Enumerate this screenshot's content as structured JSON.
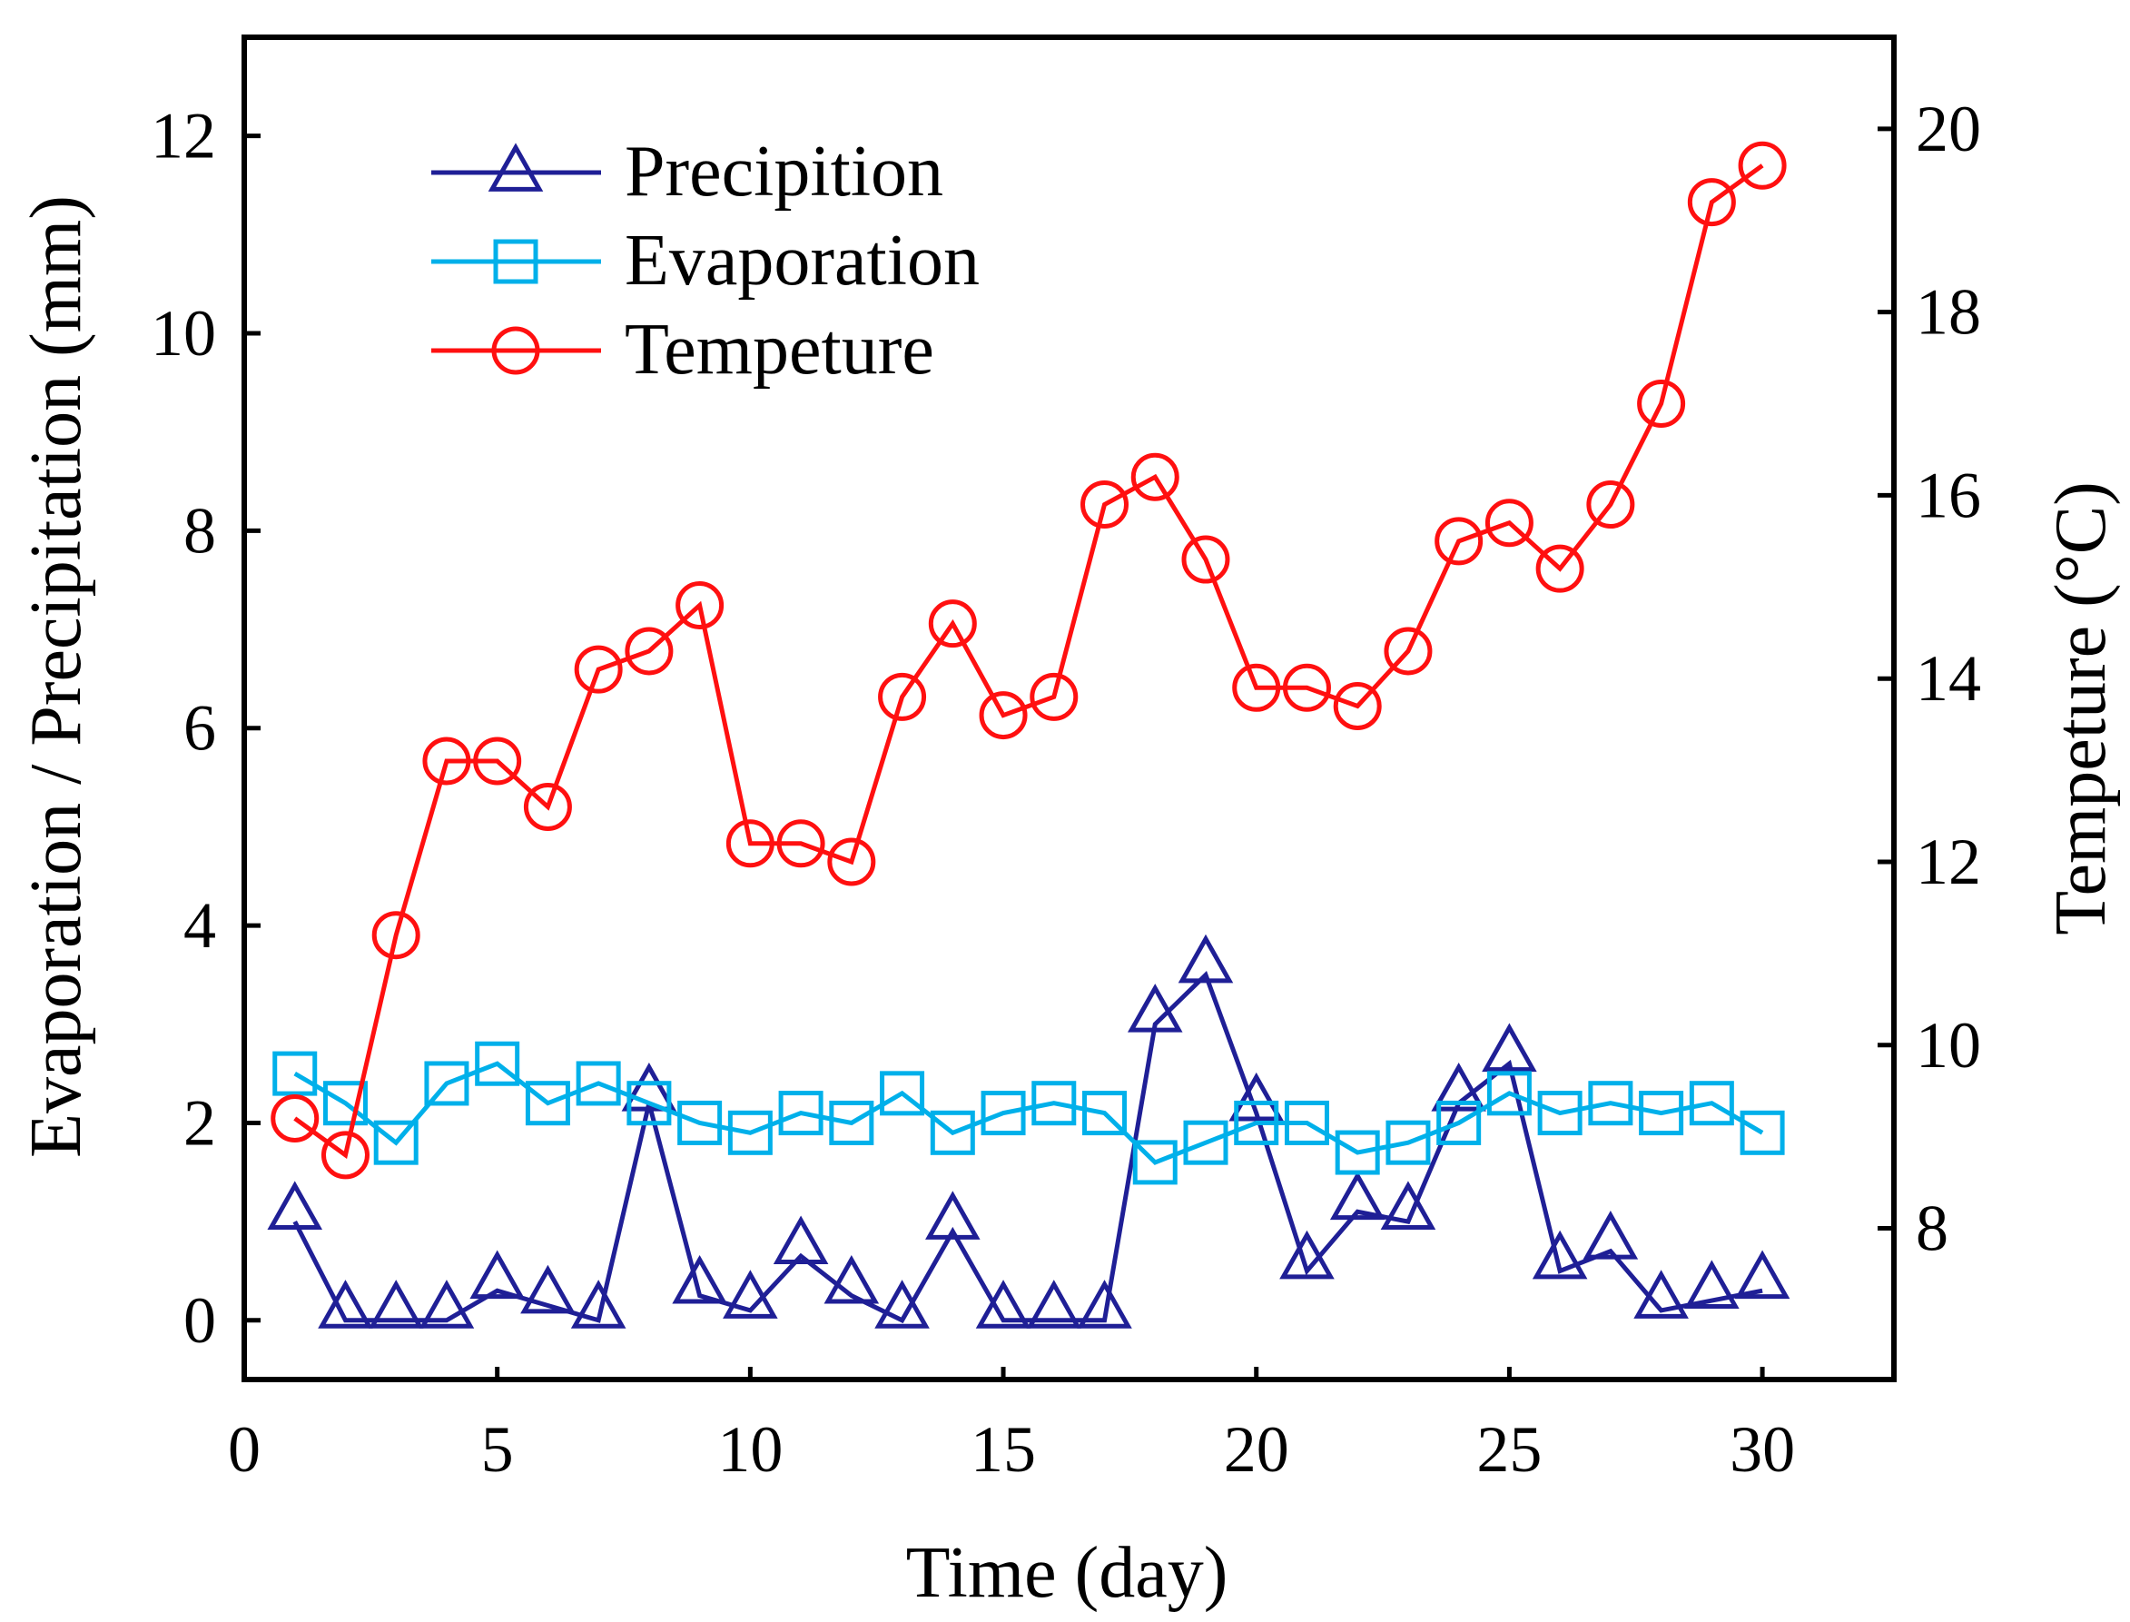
{
  "chart_data": {
    "type": "line",
    "xlabel": "Time (day)",
    "ylabel_left": "Evaporation / Precipitation (mm)",
    "ylabel_right": "Tempeture (°C)",
    "xlim": [
      0,
      32.6
    ],
    "ylim_left": [
      -0.6,
      13
    ],
    "ylim_right": [
      6.35,
      21
    ],
    "x_ticks": [
      0,
      5,
      10,
      15,
      20,
      25,
      30
    ],
    "y_left_ticks": [
      0,
      2,
      4,
      6,
      8,
      10,
      12
    ],
    "y_right_ticks": [
      8,
      10,
      12,
      14,
      16,
      18,
      20
    ],
    "legend_position": "top-left",
    "grid": false,
    "x": [
      1,
      2,
      3,
      4,
      5,
      6,
      7,
      8,
      9,
      10,
      11,
      12,
      13,
      14,
      15,
      16,
      17,
      18,
      19,
      20,
      21,
      22,
      23,
      24,
      25,
      26,
      27,
      28,
      29,
      30
    ],
    "series": [
      {
        "name": "Precipition",
        "axis": "left",
        "marker": "triangle",
        "color": "#1f1f96",
        "values": [
          1.0,
          0,
          0,
          0,
          0.3,
          0.15,
          0,
          2.2,
          0.25,
          0.1,
          0.65,
          0.25,
          0,
          0.9,
          0,
          0,
          0,
          3.0,
          3.5,
          2.1,
          0.5,
          1.1,
          1.0,
          2.2,
          2.6,
          0.5,
          0.7,
          0.1,
          0.2,
          0.3
        ]
      },
      {
        "name": "Evaporation",
        "axis": "left",
        "marker": "square",
        "color": "#00b0ea",
        "values": [
          2.5,
          2.2,
          1.8,
          2.4,
          2.6,
          2.2,
          2.4,
          2.2,
          2.0,
          1.9,
          2.1,
          2.0,
          2.3,
          1.9,
          2.1,
          2.2,
          2.1,
          1.6,
          1.8,
          2.0,
          2.0,
          1.7,
          1.8,
          2.0,
          2.3,
          2.1,
          2.2,
          2.1,
          2.2,
          1.9
        ]
      },
      {
        "name": "Tempeture",
        "axis": "right",
        "marker": "circle",
        "color": "#ff1010",
        "values": [
          9.2,
          8.8,
          11.2,
          13.1,
          13.1,
          12.6,
          14.1,
          14.3,
          14.8,
          12.2,
          12.2,
          12.0,
          13.8,
          14.6,
          13.6,
          13.8,
          15.9,
          16.2,
          15.3,
          13.9,
          13.9,
          13.7,
          14.3,
          15.5,
          15.7,
          15.2,
          15.9,
          17.0,
          19.2,
          19.6
        ]
      }
    ]
  }
}
